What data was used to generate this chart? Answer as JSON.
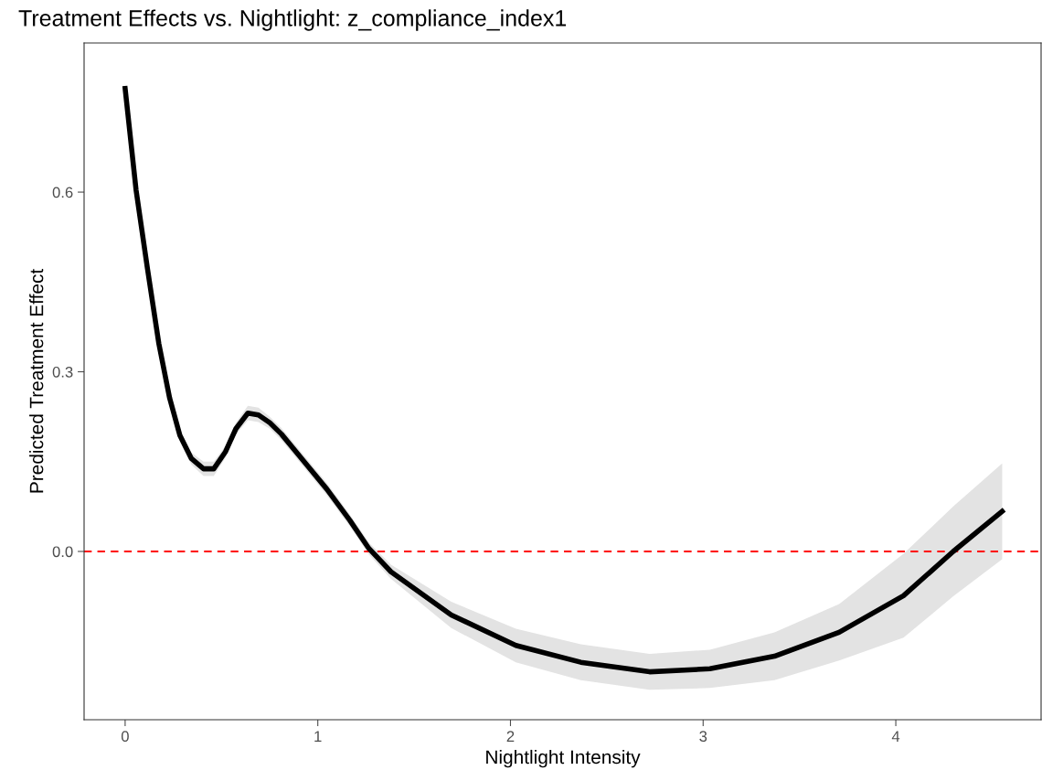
{
  "chart_data": {
    "type": "line",
    "title": "Treatment Effects vs. Nightlight: z_compliance_index1",
    "xlabel": "Nightlight Intensity",
    "ylabel": "Predicted Treatment Effect",
    "xlim": [
      -0.213,
      4.754
    ],
    "ylim": [
      -0.281,
      0.849
    ],
    "xticks": [
      0,
      1,
      2,
      3,
      4
    ],
    "yticks": [
      {
        "value": 0,
        "label": "0.0"
      },
      {
        "value": 0.3,
        "label": "0.3"
      },
      {
        "value": 0.6,
        "label": "0.6"
      }
    ],
    "grid": false,
    "marker": "none",
    "line_style": "solid",
    "series": [
      {
        "color": "#000000",
        "x": [
          0.0,
          0.057,
          0.116,
          0.175,
          0.231,
          0.284,
          0.344,
          0.407,
          0.46,
          0.52,
          0.575,
          0.637,
          0.692,
          0.751,
          0.811,
          0.929,
          1.047,
          1.166,
          1.265,
          1.38,
          1.693,
          2.028,
          2.365,
          2.722,
          3.035,
          3.37,
          3.706,
          4.04,
          4.298,
          4.552
        ],
        "values": [
          0.773,
          0.603,
          0.472,
          0.347,
          0.256,
          0.194,
          0.155,
          0.138,
          0.138,
          0.166,
          0.205,
          0.231,
          0.228,
          0.215,
          0.196,
          0.15,
          0.104,
          0.052,
          0.005,
          -0.034,
          -0.106,
          -0.157,
          -0.185,
          -0.201,
          -0.196,
          -0.175,
          -0.135,
          -0.074,
          0.0,
          0.067
        ],
        "lower": [
          0.763,
          0.593,
          0.462,
          0.337,
          0.246,
          0.184,
          0.145,
          0.126,
          0.126,
          0.156,
          0.195,
          0.219,
          0.216,
          0.205,
          0.186,
          0.14,
          0.094,
          0.042,
          -0.005,
          -0.046,
          -0.128,
          -0.185,
          -0.215,
          -0.231,
          -0.228,
          -0.215,
          -0.182,
          -0.144,
          -0.075,
          -0.013
        ],
        "upper": [
          0.783,
          0.613,
          0.482,
          0.357,
          0.266,
          0.204,
          0.165,
          0.15,
          0.15,
          0.176,
          0.215,
          0.243,
          0.24,
          0.225,
          0.206,
          0.16,
          0.114,
          0.062,
          0.015,
          -0.022,
          -0.084,
          -0.129,
          -0.155,
          -0.171,
          -0.164,
          -0.135,
          -0.088,
          -0.004,
          0.075,
          0.147
        ]
      }
    ],
    "ref_lines": [
      {
        "axis": "y",
        "value": 0,
        "color": "#ff0000",
        "line_style": "dashed"
      }
    ]
  }
}
